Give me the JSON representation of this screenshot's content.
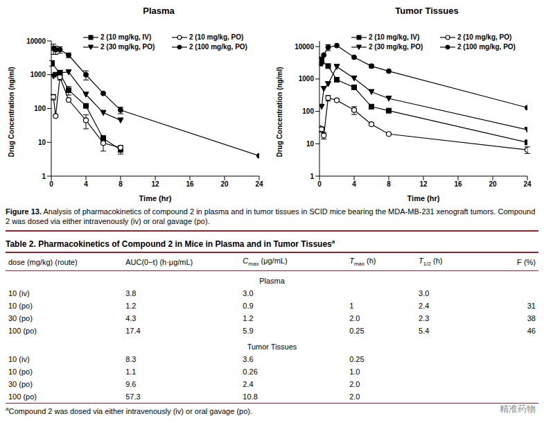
{
  "chart_data": [
    {
      "type": "line",
      "title": "Plasma",
      "x_label": "Time (hr)",
      "y_label": "Drug Concentration (ng/ml)",
      "xlim": [
        0,
        24
      ],
      "xticks": [
        0,
        4,
        8,
        12,
        16,
        20,
        24
      ],
      "ylim": [
        1,
        10000
      ],
      "yticks": [
        1,
        10,
        100,
        1000,
        10000
      ],
      "log": "y",
      "legend": "upper right",
      "series": [
        {
          "name": "2 (10 mg/kg, IV)",
          "color": "#000000",
          "marker": "square",
          "line_style": "solid",
          "x": [
            0.083,
            1,
            2,
            4,
            6,
            8
          ],
          "values": [
            2200,
            1100,
            350,
            120,
            13,
            6
          ],
          "errors": [
            400,
            null,
            100,
            null,
            3,
            1.5
          ]
        },
        {
          "name": "2 (10 mg/kg, PO)",
          "color": "#000000",
          "marker": "circle_open",
          "line_style": "solid",
          "x": [
            0.25,
            0.5,
            1,
            2,
            4,
            6,
            8
          ],
          "values": [
            220,
            60,
            850,
            180,
            45,
            9.5,
            7
          ],
          "errors": [
            40,
            null,
            150,
            null,
            20,
            4,
            1
          ]
        },
        {
          "name": "2 (30 mg/kg, PO)",
          "color": "#000000",
          "marker": "triangle_down",
          "line_style": "solid",
          "x": [
            0.25,
            0.5,
            1,
            2,
            4,
            6,
            8
          ],
          "values": [
            900,
            1000,
            1150,
            1200,
            260,
            75,
            45
          ],
          "errors": [
            null,
            null,
            null,
            null,
            null,
            null,
            null
          ]
        },
        {
          "name": "2 (100 mg/kg, PO)",
          "color": "#000000",
          "marker": "circle",
          "line_style": "solid",
          "x": [
            0.25,
            0.5,
            1,
            2,
            4,
            6,
            8,
            24
          ],
          "values": [
            6000,
            5500,
            5500,
            3800,
            1000,
            280,
            90,
            4
          ],
          "errors": [
            2000,
            1500,
            1200,
            600,
            300,
            null,
            20,
            null
          ]
        }
      ]
    },
    {
      "type": "line",
      "title": "Tumor Tissues",
      "x_label": "Time (hr)",
      "y_label": "Drug Concentration (ng/ml)",
      "xlim": [
        0,
        24
      ],
      "xticks": [
        0,
        4,
        8,
        12,
        16,
        20,
        24
      ],
      "ylim": [
        1,
        15000
      ],
      "yticks": [
        1,
        10,
        100,
        1000,
        10000
      ],
      "log": "y",
      "legend": "upper right",
      "series": [
        {
          "name": "2 (10 mg/kg, IV)",
          "color": "#000000",
          "marker": "square",
          "line_style": "solid",
          "x": [
            0.083,
            0.25,
            1,
            2,
            4,
            6,
            8,
            24
          ],
          "values": [
            3000,
            3600,
            2500,
            950,
            550,
            140,
            105,
            11
          ],
          "errors": [
            null,
            800,
            null,
            null,
            null,
            null,
            null,
            null
          ]
        },
        {
          "name": "2 (10 mg/kg, PO)",
          "color": "#000000",
          "marker": "circle_open",
          "line_style": "solid",
          "x": [
            0.083,
            0.25,
            0.5,
            1,
            2,
            4,
            6,
            8,
            24
          ],
          "values": [
            30,
            28,
            18,
            260,
            220,
            110,
            40,
            20,
            6.5
          ],
          "errors": [
            null,
            5,
            4,
            50,
            null,
            30,
            null,
            null,
            1.5
          ]
        },
        {
          "name": "2 (30 mg/kg, PO)",
          "color": "#000000",
          "marker": "triangle_down",
          "line_style": "solid",
          "x": [
            0.25,
            0.5,
            1,
            2,
            4,
            6,
            8,
            24
          ],
          "values": [
            140,
            500,
            700,
            2400,
            1050,
            400,
            250,
            27
          ],
          "errors": [
            null,
            null,
            null,
            null,
            null,
            null,
            null,
            null
          ]
        },
        {
          "name": "2 (100 mg/kg, PO)",
          "color": "#000000",
          "marker": "circle",
          "line_style": "solid",
          "x": [
            0.083,
            0.25,
            0.5,
            1,
            2,
            4,
            6,
            8,
            24
          ],
          "values": [
            3500,
            4000,
            5500,
            9500,
            10800,
            4700,
            2500,
            1750,
            130
          ],
          "errors": [
            null,
            800,
            null,
            2000,
            null,
            null,
            300,
            null,
            null
          ]
        }
      ]
    }
  ],
  "figure_caption": {
    "label": "Figure 13.",
    "text": "Analysis of pharmacokinetics of compound 2 in plasma and in tumor tissues in SCID mice bearing the MDA-MB-231 xenograft tumors. Compound 2 was dosed via either intravenously (iv) or oral gavage (po)."
  },
  "table": {
    "label": "Table 2.",
    "title": "Pharmacokinetics of Compound 2 in Mice in Plasma and in Tumor Tissues",
    "title_note": "a",
    "columns": [
      {
        "main": "dose (mg/kg) (route)"
      },
      {
        "main": "AUC(0−t) (h·μg/mL)"
      },
      {
        "main": "C",
        "sub": "max",
        "rest": " (μg/mL)"
      },
      {
        "main": "T",
        "sub": "max",
        "rest": " (h)"
      },
      {
        "main": "T",
        "sub": "1/2",
        "rest": " (h)"
      },
      {
        "main": "F (%)"
      }
    ],
    "sections": [
      {
        "title": "Plasma",
        "rows": [
          [
            "10 (iv)",
            "3.8",
            "3.0",
            null,
            "3.0",
            null
          ],
          [
            "10 (po)",
            "1.2",
            "0.9",
            "1",
            "2.4",
            "31"
          ],
          [
            "30 (po)",
            "4.3",
            "1.2",
            "2.0",
            "2.3",
            "38"
          ],
          [
            "100 (po)",
            "17.4",
            "5.9",
            "0.25",
            "5.4",
            "46"
          ]
        ]
      },
      {
        "title": "Tumor Tissues",
        "rows": [
          [
            "10 (iv)",
            "8.3",
            "3.6",
            "0.25",
            null,
            null
          ],
          [
            "10 (po)",
            "1.1",
            "0.26",
            "1.0",
            null,
            null
          ],
          [
            "30 (po)",
            "9.6",
            "2.4",
            "2.0",
            null,
            null
          ],
          [
            "100 (po)",
            "57.3",
            "10.8",
            "2.0",
            null,
            null
          ]
        ]
      }
    ],
    "footnote": {
      "mark": "a",
      "text": "Compound 2 was dosed via either intravenously (iv) or oral gavage (po)."
    }
  },
  "watermark": "精准药物"
}
